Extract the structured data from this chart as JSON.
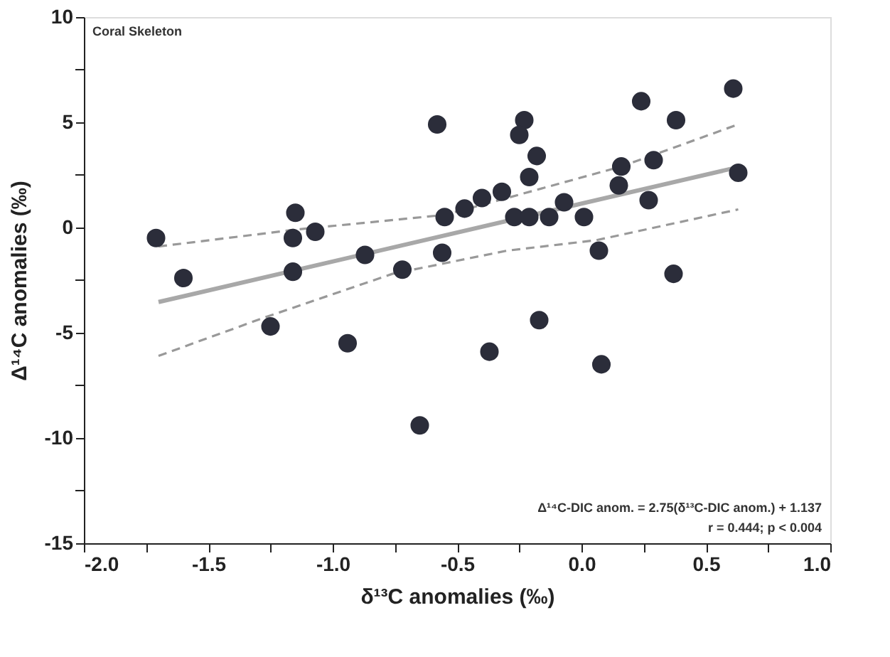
{
  "chart_data": {
    "type": "scatter",
    "xlabel": "δ¹³C anomalies (‰)",
    "ylabel": "Δ¹⁴C anomalies (‰)",
    "annotations": [
      "Coral Skeleton",
      "Δ¹⁴C-DIC anom. = 2.75(δ¹³C-DIC anom.) + 1.137",
      "r = 0.444; p < 0.004"
    ],
    "xlim": [
      -2.0,
      1.0
    ],
    "ylim": [
      -15,
      10
    ],
    "xticks": [
      {
        "value": -2.0,
        "label": "-2.0"
      },
      {
        "value": -1.75,
        "label": null
      },
      {
        "value": -1.5,
        "label": "-1.5"
      },
      {
        "value": -1.25,
        "label": null
      },
      {
        "value": -1.0,
        "label": "-1.0"
      },
      {
        "value": -0.75,
        "label": null
      },
      {
        "value": -0.5,
        "label": "-0.5"
      },
      {
        "value": -0.25,
        "label": null
      },
      {
        "value": 0,
        "label": "0.0"
      },
      {
        "value": 0.25,
        "label": null
      },
      {
        "value": 0.5,
        "label": "0.5"
      },
      {
        "value": 0.75,
        "label": null
      },
      {
        "value": 1.0,
        "label": "1.0"
      }
    ],
    "yticks": [
      -15,
      {
        "value": -12.5,
        "label": null
      },
      -10,
      {
        "value": -7.5,
        "label": null
      },
      -5,
      {
        "value": -2.5,
        "label": null
      },
      0,
      {
        "value": 2.5,
        "label": null
      },
      5,
      {
        "value": 7.5,
        "label": null
      },
      10
    ],
    "grid": false,
    "marker": "circle",
    "series": [
      {
        "type": "line",
        "color": "#a8a8a8",
        "line_style": "solid",
        "marker": "none",
        "x": [
          -1.7,
          0.63
        ],
        "values": [
          -3.54,
          2.87
        ]
      },
      {
        "type": "line",
        "color": "#999999",
        "line_style": "dashed",
        "marker": "none",
        "x": [
          -1.7,
          -1.15,
          -0.55,
          -0.3,
          0.16,
          0.63
        ],
        "values": [
          -0.9,
          -0.1,
          0.6,
          1.4,
          2.9,
          4.9
        ]
      },
      {
        "type": "line",
        "color": "#999999",
        "line_style": "dashed",
        "marker": "none",
        "x": [
          -1.7,
          -1.28,
          -0.76,
          -0.3,
          0.06,
          0.63
        ],
        "values": [
          -6.1,
          -4.3,
          -2.2,
          -1.1,
          -0.6,
          0.86
        ]
      },
      {
        "color": "#2b2d3a",
        "x": [
          -1.71,
          -1.6,
          -1.15,
          -1.16,
          -1.16,
          -1.07,
          -1.25,
          -0.94,
          -0.87,
          -0.72,
          -0.65,
          -0.58,
          -0.55,
          -0.56,
          -0.47,
          -0.4,
          -0.37,
          -0.32,
          -0.23,
          -0.25,
          -0.18,
          -0.21,
          -0.17,
          -0.27,
          -0.21,
          -0.13,
          -0.07,
          0.01,
          0.08,
          0.07,
          0.15,
          0.16,
          0.24,
          0.27,
          0.29,
          0.38,
          0.37,
          0.61,
          0.63
        ],
        "values": [
          -0.5,
          -2.4,
          0.7,
          -0.5,
          -2.1,
          -0.2,
          -4.7,
          -5.5,
          -1.3,
          -2.0,
          -9.4,
          4.9,
          0.5,
          -1.2,
          0.9,
          1.4,
          -5.9,
          1.7,
          5.1,
          4.4,
          3.4,
          2.4,
          -4.4,
          0.5,
          0.5,
          0.5,
          1.2,
          0.5,
          -6.5,
          -1.1,
          2.0,
          2.9,
          6.0,
          1.3,
          3.2,
          5.1,
          -2.2,
          6.6,
          2.6
        ]
      }
    ]
  }
}
